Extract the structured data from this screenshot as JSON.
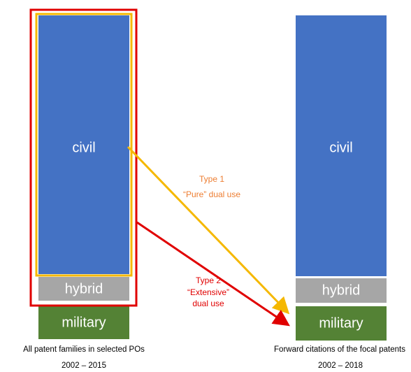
{
  "left_column": {
    "segments": [
      "civil",
      "hybrid",
      "military"
    ],
    "caption": "All patent families in selected POs",
    "period": "2002 – 2015"
  },
  "right_column": {
    "segments": [
      "civil",
      "hybrid",
      "military"
    ],
    "caption": "Forward citations of the focal patents",
    "period": "2002 – 2018"
  },
  "links": [
    {
      "type": "Type 1",
      "description": [
        "“Pure” dual use"
      ]
    },
    {
      "type": "Type 2",
      "description": [
        "“Extensive”",
        "dual use"
      ]
    }
  ]
}
